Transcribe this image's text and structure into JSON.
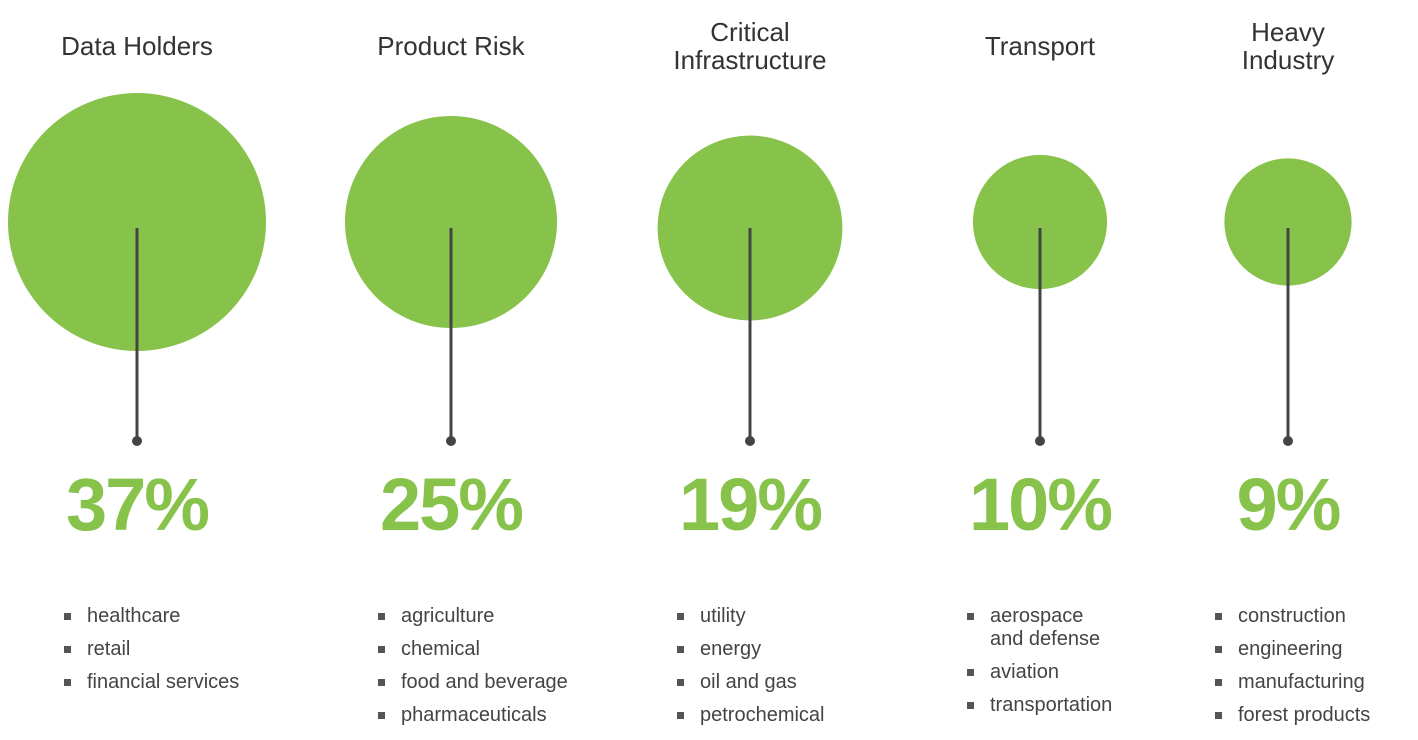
{
  "chart_data": {
    "type": "bubble",
    "categories": [
      "Data Holders",
      "Product Risk",
      "Critical Infrastructure",
      "Transport",
      "Heavy Industry"
    ],
    "values": [
      37,
      25,
      19,
      10,
      9
    ],
    "value_labels": [
      "37%",
      "25%",
      "19%",
      "10%",
      "9%"
    ],
    "color": "#87c34b",
    "items": [
      [
        "healthcare",
        "retail",
        "financial services"
      ],
      [
        "agriculture",
        "chemical",
        "food and beverage",
        "pharmaceuticals"
      ],
      [
        "utility",
        "energy",
        "oil and gas",
        "petrochemical"
      ],
      [
        "aerospace and defense",
        "aviation",
        "transportation"
      ],
      [
        "construction",
        "engineering",
        "manufacturing",
        "forest products"
      ]
    ]
  }
}
